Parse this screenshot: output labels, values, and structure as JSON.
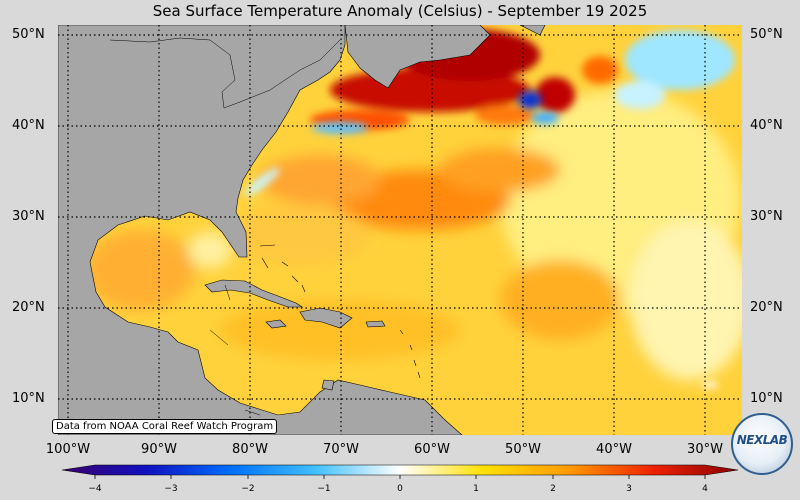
{
  "title": "Sea Surface Temperature Anomaly (Celsius) - September 19 2025",
  "map": {
    "latitude_labels": [
      "50°N",
      "40°N",
      "30°N",
      "20°N",
      "10°N"
    ],
    "longitude_labels": [
      "100°W",
      "90°W",
      "80°W",
      "70°W",
      "60°W",
      "50°W",
      "40°W",
      "30°W"
    ],
    "grid": "dotted",
    "land_color": "#a6a6a6",
    "ocean_background_color": "#ffd23c"
  },
  "credit": "Data from NOAA Coral Reef Watch Program",
  "colorbar": {
    "min": -4,
    "max": 4,
    "tick_labels": [
      "−4",
      "−3",
      "−2",
      "−1",
      "0",
      "1",
      "2",
      "3",
      "4"
    ],
    "colors": [
      "#3a0070",
      "#1010c0",
      "#0070ff",
      "#40c0ff",
      "#ffffff",
      "#ffe000",
      "#ff9a00",
      "#ee2200",
      "#8a0000"
    ]
  },
  "logo": {
    "text": "NEXLAB"
  }
}
